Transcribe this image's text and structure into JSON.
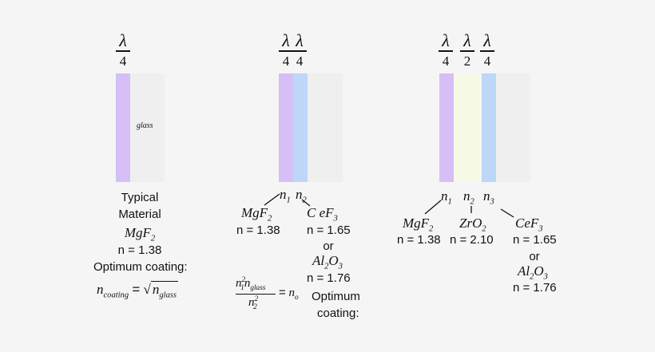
{
  "fractions": {
    "quarter_num": "λ",
    "quarter_den": "4",
    "half_num": "λ",
    "half_den": "2"
  },
  "panel1": {
    "glass_label": "glass",
    "typical": "Typical",
    "material": "Material",
    "material_formula": "MgF",
    "material_formula_sub": "2",
    "index": "n = 1.38",
    "optimum": "Optimum coating:",
    "n": "n",
    "coating_sub": "coating",
    "equals": "=",
    "glass_sub": "glass"
  },
  "panel2": {
    "n1_label": "n",
    "n1_sub": "1",
    "n2_label": "n",
    "n2_sub": "2",
    "mat1": "MgF",
    "mat1_sub": "2",
    "mat1_index": "n = 1.38",
    "mat2": "C eF",
    "mat2_sub": "3",
    "mat2_index": "n = 1.65",
    "or": "or",
    "mat3": "Al",
    "mat3_sub1": "2",
    "mat3_o": "O",
    "mat3_sub2": "3",
    "mat3_index": "n = 1.76",
    "eq_num_n": "n",
    "eq_num_sup": "2",
    "eq_num_sub1": "1",
    "eq_num_n2": "n",
    "eq_num_sub2": "glass",
    "eq_den_n": "n",
    "eq_den_sup": "2",
    "eq_den_sub": "2",
    "eq_equals": "=",
    "eq_rhs": "n",
    "eq_rhs_sub": "o",
    "optimum1": "Optimum",
    "optimum2": "coating:"
  },
  "panel3": {
    "n_label": "n",
    "n1_sub": "1",
    "n2_sub": "2",
    "n3_sub": "3",
    "mat1": "MgF",
    "mat1_sub": "2",
    "mat1_index": "n = 1.38",
    "mat2": "ZrO",
    "mat2_sub": "2",
    "mat2_index": "n = 2.10",
    "mat3": "CeF",
    "mat3_sub": "3",
    "mat3_index": "n = 1.65",
    "or": "or",
    "mat4": "Al",
    "mat4_sub1": "2",
    "mat4_o": "O",
    "mat4_sub2": "3",
    "mat4_index": "n = 1.76"
  },
  "colors": {
    "mgf2_layer": "#d5bff6",
    "cef3_layer": "#bed6f8",
    "zro2_layer": "#f6f9e6",
    "glass": "#efefef"
  }
}
